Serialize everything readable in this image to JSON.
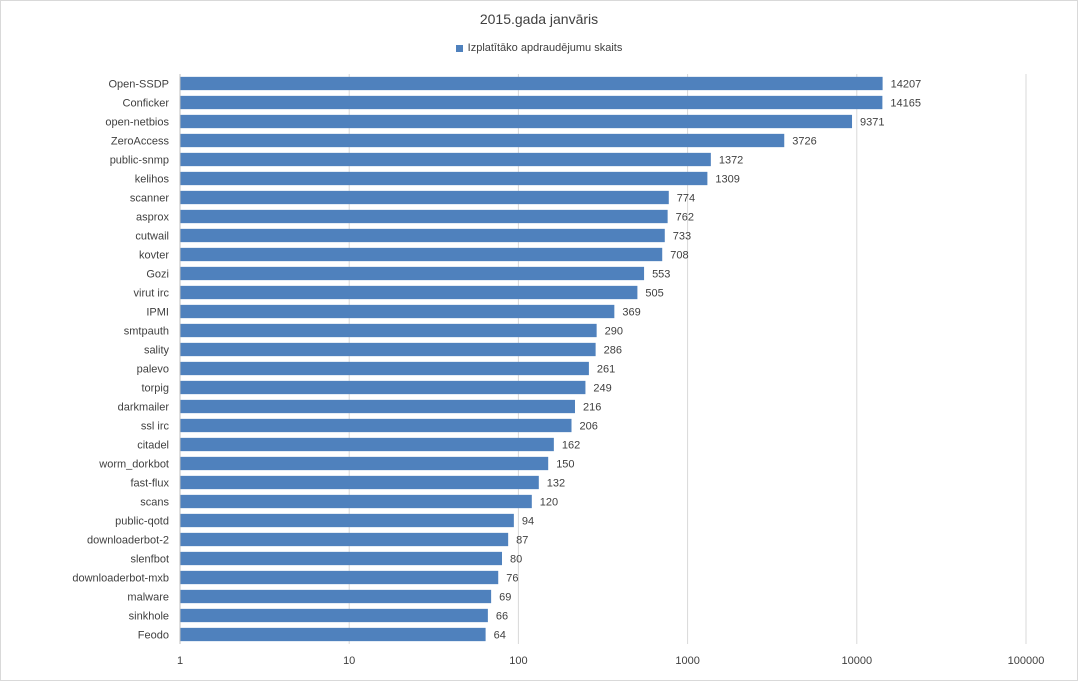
{
  "chart_data": {
    "type": "bar",
    "orientation": "horizontal",
    "title": "2015.gada janvāris",
    "legend_position": "top",
    "x_scale": "log",
    "xlim": [
      1,
      100000
    ],
    "x_ticks": [
      "1",
      "10",
      "100",
      "1000",
      "10000",
      "100000"
    ],
    "grid": true,
    "bar_color": "#4f81bd",
    "series": [
      {
        "name": "Izplatītāko apdraudējumu skaits",
        "values": [
          14207,
          14165,
          9371,
          3726,
          1372,
          1309,
          774,
          762,
          733,
          708,
          553,
          505,
          369,
          290,
          286,
          261,
          249,
          216,
          206,
          162,
          150,
          132,
          120,
          94,
          87,
          80,
          76,
          69,
          66,
          64
        ]
      }
    ],
    "categories": [
      "Open-SSDP",
      "Conficker",
      "open-netbios",
      "ZeroAccess",
      "public-snmp",
      "kelihos",
      "scanner",
      "asprox",
      "cutwail",
      "kovter",
      "Gozi",
      "virut irc",
      "IPMI",
      "smtpauth",
      "sality",
      "palevo",
      "torpig",
      "darkmailer",
      "ssl irc",
      "citadel",
      "worm_dorkbot",
      "fast-flux",
      "scans",
      "public-qotd",
      "downloaderbot-2",
      "slenfbot",
      "downloaderbot-mxb",
      "malware",
      "sinkhole",
      "Feodo"
    ]
  }
}
